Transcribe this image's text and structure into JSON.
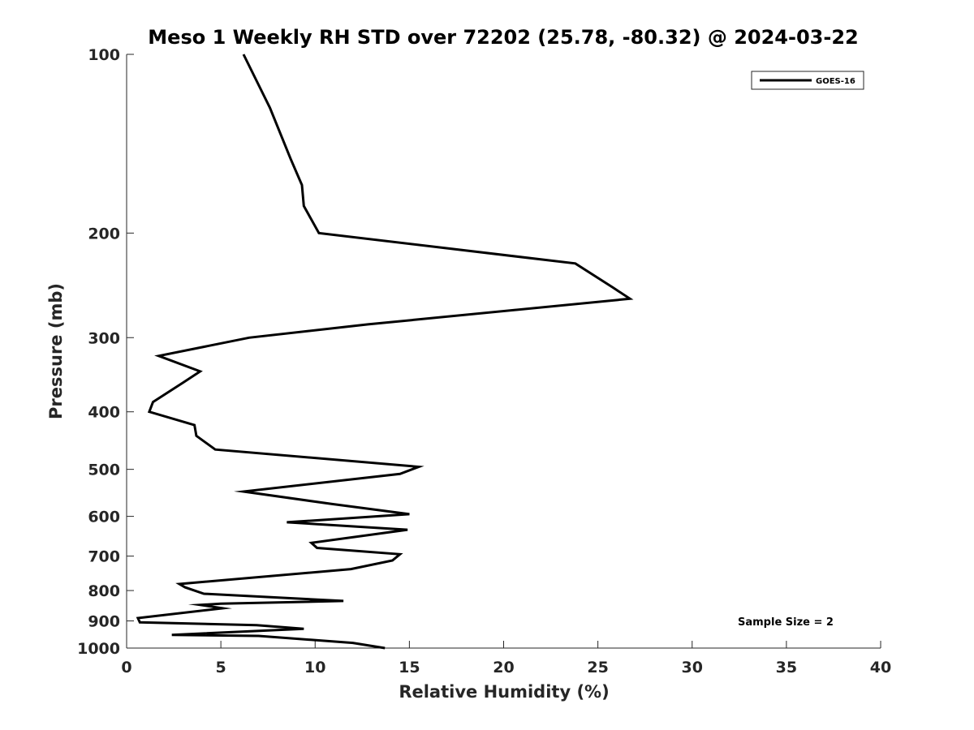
{
  "chart_data": {
    "type": "line",
    "title": "Meso 1 Weekly RH STD over 72202 (25.78, -80.32) @ 2024-03-22",
    "xlabel": "Relative Humidity (%)",
    "ylabel": "Pressure (mb)",
    "xlim": [
      0,
      40
    ],
    "ylim": [
      100,
      1000
    ],
    "yscale": "log",
    "y_reversed": true,
    "grid": false,
    "x_ticks": [
      "0",
      "5",
      "10",
      "15",
      "20",
      "25",
      "30",
      "35",
      "40"
    ],
    "y_ticks": [
      "100",
      "200",
      "300",
      "400",
      "500",
      "600",
      "700",
      "800",
      "900",
      "1000"
    ],
    "legend": {
      "position": "top-right",
      "entries": [
        "GOES-16"
      ]
    },
    "annotation": "Sample Size = 2",
    "series": [
      {
        "name": "GOES-16",
        "color": "#000000",
        "x": [
          6.2,
          7.6,
          8.7,
          9.3,
          9.4,
          10.2,
          23.8,
          25.8,
          26.7,
          12.8,
          6.5,
          1.7,
          3.9,
          3.0,
          1.4,
          1.2,
          3.6,
          3.7,
          4.7,
          15.5,
          14.5,
          6.2,
          10.9,
          15.0,
          8.5,
          14.9,
          9.8,
          10.1,
          14.5,
          14.1,
          11.9,
          2.8,
          3.1,
          4.1,
          11.5,
          5.0,
          3.9,
          5.1,
          0.6,
          0.7,
          6.9,
          9.4,
          2.4,
          7.0,
          12.0,
          13.7
        ],
        "y": [
          100,
          123,
          150,
          166,
          180,
          200,
          225,
          247,
          258,
          285,
          300,
          322,
          342,
          357,
          385,
          400,
          421,
          439,
          463,
          495,
          509,
          545,
          572,
          595,
          614,
          632,
          665,
          678,
          695,
          712,
          736,
          780,
          790,
          810,
          833,
          842,
          846,
          857,
          890,
          905,
          915,
          928,
          950,
          954,
          980,
          1000
        ]
      }
    ]
  }
}
